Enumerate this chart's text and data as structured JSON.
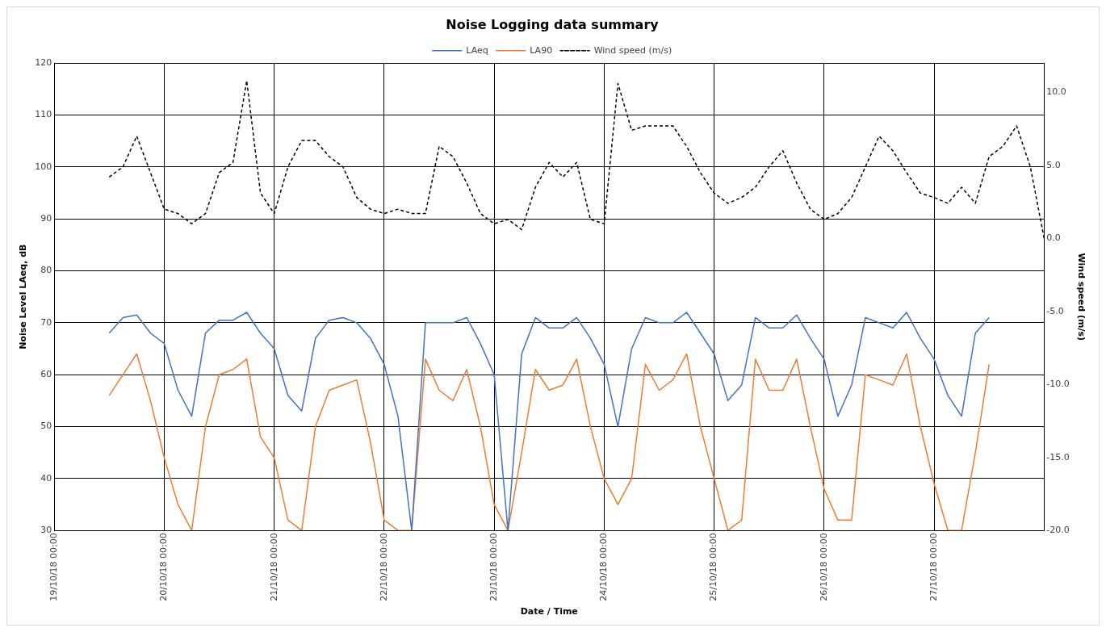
{
  "chart_data": {
    "type": "line",
    "title": "Noise Logging data summary",
    "xlabel": "Date / Time",
    "ylabel": "Noise Level LAeq, dB",
    "y2label": "Wind speed (m/s)",
    "x": [
      "--10-19T12:00",
      "--10-19T15:00",
      "--10-19T18:00",
      "--10-19T21:00",
      "--10-20T00:00",
      "--10-20T03:00",
      "--10-20T06:00",
      "--10-20T09:00",
      "--10-20T12:00",
      "--10-20T15:00",
      "--10-20T18:00",
      "--10-20T21:00",
      "--10-21T00:00",
      "--10-21T03:00",
      "--10-21T06:00",
      "--10-21T09:00",
      "--10-21T12:00",
      "--10-21T15:00",
      "--10-21T18:00",
      "--10-21T21:00",
      "--10-22T00:00",
      "--10-22T03:00",
      "--10-22T06:00",
      "--10-22T09:00",
      "--10-22T12:00",
      "--10-22T15:00",
      "--10-22T18:00",
      "--10-22T21:00",
      "--10-23T00:00",
      "--10-23T03:00",
      "--10-23T06:00",
      "--10-23T09:00",
      "--10-23T12:00",
      "--10-23T15:00",
      "--10-23T18:00",
      "--10-23T21:00",
      "--10-24T00:00",
      "--10-24T03:00",
      "--10-24T06:00",
      "--10-24T09:00",
      "--10-24T12:00",
      "--10-24T15:00",
      "--10-24T18:00",
      "--10-24T21:00",
      "--10-25T00:00",
      "--10-25T03:00",
      "--10-25T06:00",
      "--10-25T09:00",
      "--10-25T12:00",
      "--10-25T15:00",
      "--10-25T18:00",
      "--10-25T21:00",
      "--10-26T00:00",
      "--10-26T03:00",
      "--10-26T06:00",
      "--10-26T09:00",
      "--10-26T12:00",
      "--10-26T15:00",
      "--10-26T18:00",
      "--10-26T21:00",
      "--10-27T00:00",
      "--10-27T03:00",
      "--10-27T06:00",
      "--10-27T09:00",
      "--10-27T12:00"
    ],
    "series": [
      {
        "name": "LAeq",
        "color": "#4472c4",
        "values": [
          68,
          71,
          71.5,
          68,
          66,
          57,
          52,
          68,
          70.5,
          70.5,
          72,
          68,
          65,
          56,
          53,
          67,
          70.5,
          71,
          70,
          67,
          62,
          52,
          30,
          70,
          70,
          70,
          71,
          66,
          60,
          30,
          64,
          71,
          69,
          69,
          71,
          67,
          62,
          50,
          65,
          71,
          70,
          70,
          72,
          68,
          64,
          55,
          58,
          71,
          69,
          69,
          71.5,
          67,
          63,
          52,
          58,
          71,
          70,
          69,
          72,
          67,
          63,
          56,
          52,
          68,
          71
        ]
      },
      {
        "name": "LA90",
        "color": "#ed7d31",
        "values": [
          56,
          60,
          64,
          55,
          44,
          35,
          30,
          50,
          60,
          61,
          63,
          48,
          44,
          32,
          30,
          50,
          57,
          58,
          59,
          47,
          32,
          30,
          30,
          63,
          57,
          55,
          61,
          50,
          35,
          30,
          45,
          61,
          57,
          58,
          63,
          50,
          40,
          35,
          40,
          62,
          57,
          59,
          64,
          50,
          40,
          30,
          32,
          63,
          57,
          57,
          63,
          50,
          38,
          32,
          32,
          60,
          59,
          58,
          64,
          50,
          39,
          30,
          30,
          45,
          62
        ]
      },
      {
        "name": "Wind speed (m/s)",
        "color": "#000000",
        "axis": "y2",
        "line_style": "dashed",
        "x": [
          "--10-19T12:00",
          "--10-19T15:00",
          "--10-19T18:00",
          "--10-19T21:00",
          "--10-20T00:00",
          "--10-20T03:00",
          "--10-20T06:00",
          "--10-20T09:00",
          "--10-20T12:00",
          "--10-20T15:00",
          "--10-20T18:00",
          "--10-20T21:00",
          "--10-21T00:00",
          "--10-21T03:00",
          "--10-21T06:00",
          "--10-21T09:00",
          "--10-21T12:00",
          "--10-21T15:00",
          "--10-21T18:00",
          "--10-21T21:00",
          "--10-22T00:00",
          "--10-22T03:00",
          "--10-22T06:00",
          "--10-22T09:00",
          "--10-22T12:00",
          "--10-22T15:00",
          "--10-22T18:00",
          "--10-22T21:00",
          "--10-23T00:00",
          "--10-23T03:00",
          "--10-23T06:00",
          "--10-23T09:00",
          "--10-23T12:00",
          "--10-23T15:00",
          "--10-23T18:00",
          "--10-23T21:00",
          "--10-24T00:00",
          "--10-24T03:00",
          "--10-24T06:00",
          "--10-24T09:00",
          "--10-24T12:00",
          "--10-24T15:00",
          "--10-24T18:00",
          "--10-24T21:00",
          "--10-25T00:00",
          "--10-25T03:00",
          "--10-25T06:00",
          "--10-25T09:00",
          "--10-25T12:00",
          "--10-25T15:00",
          "--10-25T18:00",
          "--10-25T21:00",
          "--10-26T00:00",
          "--10-26T03:00",
          "--10-26T06:00",
          "--10-26T09:00",
          "--10-26T12:00",
          "--10-26T15:00",
          "--10-26T18:00",
          "--10-26T21:00",
          "--10-27T00:00",
          "--10-27T03:00",
          "--10-27T06:00",
          "--10-27T09:00",
          "--10-27T12:00",
          "--10-27T15:00",
          "--10-27T18:00",
          "--10-27T21:00",
          "--10-28T00:00"
        ],
        "values": [
          4.2,
          4.9,
          7.0,
          4.5,
          2.0,
          1.7,
          1.0,
          1.7,
          4.5,
          5.2,
          10.8,
          3.1,
          1.7,
          4.9,
          6.7,
          6.7,
          5.6,
          4.9,
          2.8,
          2.0,
          1.7,
          2.0,
          1.7,
          1.7,
          6.3,
          5.6,
          3.8,
          1.7,
          1.0,
          1.3,
          0.6,
          3.5,
          5.2,
          4.2,
          5.2,
          1.3,
          1.0,
          10.6,
          7.4,
          7.7,
          7.7,
          7.7,
          6.3,
          4.5,
          3.1,
          2.4,
          2.8,
          3.5,
          4.9,
          6.0,
          3.8,
          2.0,
          1.3,
          1.7,
          2.8,
          4.9,
          7.0,
          6.0,
          4.5,
          3.1,
          2.8,
          2.4,
          3.5,
          2.4,
          5.6,
          6.3,
          7.7,
          4.9,
          0.0
        ]
      }
    ],
    "xlim": [
      "--10-19T00:00",
      "--10-28T00:00"
    ],
    "xticks": [
      {
        "value": "--10-19T00:00",
        "label": "19/10/18 00:00"
      },
      {
        "value": "--10-20T00:00",
        "label": "20/10/18 00:00"
      },
      {
        "value": "--10-21T00:00",
        "label": "21/10/18 00:00"
      },
      {
        "value": "--10-22T00:00",
        "label": "22/10/18 00:00"
      },
      {
        "value": "--10-23T00:00",
        "label": "23/10/18 00:00"
      },
      {
        "value": "--10-24T00:00",
        "label": "24/10/18 00:00"
      },
      {
        "value": "--10-25T00:00",
        "label": "25/10/18 00:00"
      },
      {
        "value": "--10-26T00:00",
        "label": "26/10/18 00:00"
      },
      {
        "value": "--10-27T00:00",
        "label": "27/10/18 00:00"
      }
    ],
    "ylim": [
      30,
      120
    ],
    "yticks": [
      30,
      40,
      50,
      60,
      70,
      80,
      90,
      100,
      110,
      120
    ],
    "y2lim": [
      -20,
      12
    ],
    "y2ticks": [
      {
        "value": -20,
        "label": "-20.0"
      },
      {
        "value": -15,
        "label": "-15.0"
      },
      {
        "value": -10,
        "label": "-10.0"
      },
      {
        "value": -5,
        "label": "-5.0"
      },
      {
        "value": 0,
        "label": "0.0"
      },
      {
        "value": 5,
        "label": "5.0"
      },
      {
        "value": 10,
        "label": "10.0"
      }
    ],
    "grid": true,
    "legend": "top",
    "marker": "none",
    "line_style": "solid"
  }
}
